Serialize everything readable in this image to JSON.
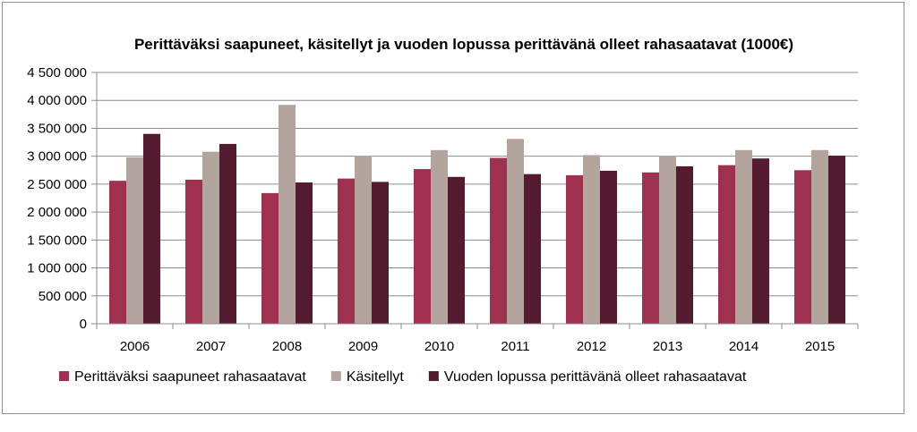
{
  "chart_data": {
    "type": "bar",
    "title": "Perittäväksi saapuneet, käsitellyt ja vuoden lopussa perittävänä olleet rahasaatavat (1000€)",
    "xlabel": "",
    "ylabel": "",
    "ylim": [
      0,
      4500000
    ],
    "yticks": [
      0,
      500000,
      1000000,
      1500000,
      2000000,
      2500000,
      3000000,
      3500000,
      4000000,
      4500000
    ],
    "ytick_labels": [
      "0",
      "500 000",
      "1 000 000",
      "1 500 000",
      "2 000 000",
      "2 500 000",
      "3 000 000",
      "3 500 000",
      "4 000 000",
      "4 500 000"
    ],
    "categories": [
      "2006",
      "2007",
      "2008",
      "2009",
      "2010",
      "2011",
      "2012",
      "2013",
      "2014",
      "2015"
    ],
    "grid": true,
    "legend_position": "bottom",
    "series": [
      {
        "name": "Perittäväksi saapuneet rahasaatavat",
        "color": "#a0304f",
        "values": [
          2560000,
          2580000,
          2340000,
          2600000,
          2770000,
          2970000,
          2660000,
          2710000,
          2840000,
          2750000
        ]
      },
      {
        "name": "Käsitellyt",
        "color": "#b3a59d",
        "values": [
          2980000,
          3080000,
          3920000,
          3010000,
          3110000,
          3310000,
          3020000,
          3010000,
          3110000,
          3110000
        ]
      },
      {
        "name": "Vuoden lopussa perittävänä olleet rahasaatavat",
        "color": "#531a30",
        "values": [
          3400000,
          3220000,
          2530000,
          2540000,
          2630000,
          2680000,
          2740000,
          2820000,
          2960000,
          3010000
        ]
      }
    ]
  }
}
